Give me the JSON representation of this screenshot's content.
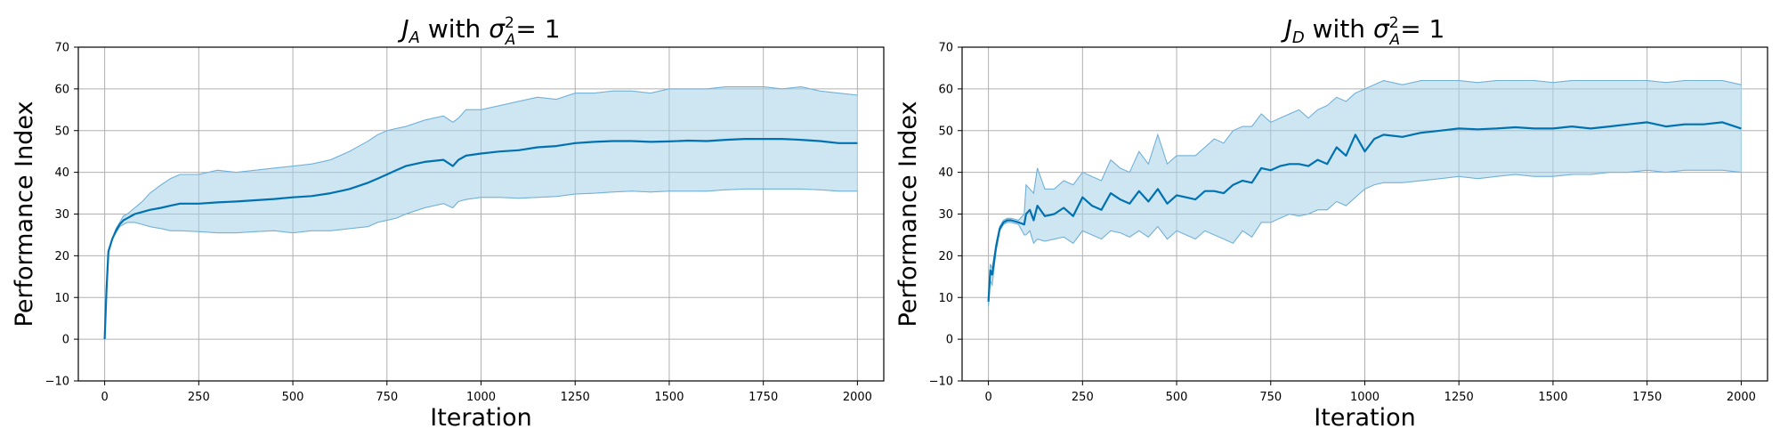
{
  "chart_data": [
    {
      "type": "line",
      "title": {
        "prefix": "J",
        "prefix_sub": "A",
        "text": " with ",
        "sym": "σ",
        "sym_sup": "2",
        "sym_sub": "A",
        "suffix": "=  1"
      },
      "xlabel": "Iteration",
      "ylabel": "Performance Index",
      "xlim": [
        -70,
        2070
      ],
      "ylim": [
        -10,
        70
      ],
      "xticks": [
        0,
        250,
        500,
        750,
        1000,
        1250,
        1500,
        1750,
        2000
      ],
      "yticks": [
        -10,
        0,
        10,
        20,
        30,
        40,
        50,
        60,
        70
      ],
      "ytick_labels": [
        "−10",
        "0",
        "10",
        "20",
        "30",
        "40",
        "50",
        "60",
        "70"
      ],
      "grid": true,
      "series": [
        {
          "color": "#0072b2",
          "band_color": "#a6cfe8",
          "x": [
            0,
            5,
            10,
            20,
            30,
            40,
            50,
            60,
            80,
            100,
            120,
            150,
            175,
            200,
            250,
            300,
            350,
            400,
            450,
            500,
            550,
            600,
            650,
            700,
            725,
            750,
            775,
            800,
            850,
            900,
            925,
            940,
            960,
            1000,
            1050,
            1100,
            1150,
            1200,
            1250,
            1300,
            1350,
            1400,
            1450,
            1500,
            1550,
            1600,
            1650,
            1700,
            1750,
            1800,
            1850,
            1900,
            1950,
            2000
          ],
          "mean": [
            0,
            12,
            21,
            24,
            26,
            27.5,
            28.5,
            29,
            30,
            30.5,
            31,
            31.5,
            32,
            32.5,
            32.5,
            32.8,
            33,
            33.3,
            33.6,
            34,
            34.3,
            35,
            36,
            37.5,
            38.5,
            39.5,
            40.5,
            41.5,
            42.5,
            43,
            41.5,
            43,
            44,
            44.5,
            45,
            45.3,
            46,
            46.3,
            47,
            47.3,
            47.5,
            47.5,
            47.3,
            47.4,
            47.6,
            47.5,
            47.8,
            48,
            48,
            48,
            47.8,
            47.5,
            47,
            47
          ],
          "upper": [
            0,
            12,
            21,
            24,
            26.5,
            28,
            29.5,
            30,
            31.5,
            33,
            35,
            37,
            38.5,
            39.5,
            39.5,
            40.5,
            40,
            40.5,
            41,
            41.5,
            42,
            43,
            45,
            47.5,
            49,
            50,
            50.5,
            51,
            52.5,
            53.5,
            52,
            53,
            55,
            55,
            56,
            57,
            58,
            57.5,
            59,
            59,
            59.5,
            59.5,
            59,
            60,
            60,
            60,
            60.5,
            60.5,
            60.5,
            60,
            60.5,
            59.5,
            59,
            58.5
          ],
          "lower": [
            0,
            12,
            21,
            24,
            25.5,
            27,
            27.5,
            28,
            28,
            27.5,
            27,
            26.5,
            26,
            26,
            25.8,
            25.5,
            25.5,
            25.8,
            26,
            25.5,
            26,
            26,
            26.5,
            27,
            28,
            28.5,
            29,
            30,
            31.5,
            32.5,
            31.5,
            33,
            33.5,
            34,
            34,
            33.8,
            34,
            34.2,
            34.8,
            35,
            35.3,
            35.5,
            35.3,
            35.5,
            35.5,
            35.5,
            35.8,
            36,
            36,
            36,
            36,
            35.8,
            35.5,
            35.5
          ]
        }
      ]
    },
    {
      "type": "line",
      "title": {
        "prefix": "J",
        "prefix_sub": "D",
        "text": " with ",
        "sym": "σ",
        "sym_sup": "2",
        "sym_sub": "A",
        "suffix": "=  1"
      },
      "xlabel": "Iteration",
      "ylabel": "Performance Index",
      "xlim": [
        -70,
        2070
      ],
      "ylim": [
        -10,
        70
      ],
      "xticks": [
        0,
        250,
        500,
        750,
        1000,
        1250,
        1500,
        1750,
        2000
      ],
      "yticks": [
        -10,
        0,
        10,
        20,
        30,
        40,
        50,
        60,
        70
      ],
      "ytick_labels": [
        "−10",
        "0",
        "10",
        "20",
        "30",
        "40",
        "50",
        "60",
        "70"
      ],
      "grid": true,
      "series": [
        {
          "color": "#0072b2",
          "band_color": "#a6cfe8",
          "x": [
            0,
            5,
            10,
            20,
            30,
            40,
            50,
            60,
            80,
            95,
            100,
            110,
            120,
            130,
            150,
            175,
            200,
            225,
            250,
            275,
            300,
            325,
            350,
            375,
            400,
            425,
            450,
            475,
            500,
            525,
            550,
            575,
            600,
            625,
            650,
            675,
            700,
            725,
            750,
            775,
            800,
            825,
            850,
            875,
            900,
            925,
            950,
            975,
            1000,
            1025,
            1050,
            1100,
            1150,
            1200,
            1250,
            1300,
            1350,
            1400,
            1450,
            1500,
            1550,
            1600,
            1650,
            1700,
            1750,
            1800,
            1850,
            1900,
            1950,
            2000
          ],
          "mean": [
            9,
            16.5,
            15.5,
            22,
            26.5,
            28,
            28.5,
            28.5,
            28,
            27.5,
            30,
            31,
            28.5,
            32,
            29.5,
            30,
            31.5,
            29.5,
            34,
            32,
            31,
            35,
            33.5,
            32.5,
            35.5,
            33,
            36,
            32.5,
            34.5,
            34,
            33.5,
            35.5,
            35.5,
            35,
            37,
            38,
            37.5,
            41,
            40.5,
            41.5,
            42,
            42,
            41.5,
            43,
            42,
            46,
            44,
            49,
            45,
            48,
            49,
            48.5,
            49.5,
            50,
            50.5,
            50.3,
            50.5,
            50.8,
            50.5,
            50.5,
            51,
            50.5,
            51,
            51.5,
            52,
            51,
            51.5,
            51.5,
            52,
            50.5
          ],
          "upper": [
            10,
            18,
            17,
            23,
            27,
            28.5,
            29,
            29,
            28.5,
            30,
            37,
            36,
            35,
            41,
            36,
            36,
            38,
            37,
            40,
            39,
            38,
            43,
            41,
            40,
            45,
            42,
            49,
            42,
            44,
            44,
            44,
            46,
            48,
            47,
            50,
            51,
            51,
            54,
            52,
            53,
            54,
            55,
            53,
            55,
            56,
            58,
            57,
            59,
            60,
            61,
            62,
            61,
            62,
            62,
            62,
            61.5,
            62,
            62,
            62,
            61.5,
            62,
            62,
            62,
            62,
            62,
            61.5,
            62,
            62,
            62,
            61
          ],
          "lower": [
            8,
            14,
            13,
            21,
            26,
            27.5,
            28,
            28,
            27.5,
            25,
            25,
            26,
            23,
            24,
            23.5,
            24,
            24.5,
            23,
            26,
            25,
            24,
            26,
            25.5,
            24.5,
            26,
            24.5,
            27,
            24,
            26,
            25,
            24,
            26,
            25,
            24,
            23,
            26,
            24.5,
            28,
            28,
            29,
            30,
            29.5,
            30,
            31,
            31,
            33,
            32,
            34,
            36,
            37,
            37.5,
            37.5,
            38,
            38.5,
            39,
            38.5,
            39,
            39.5,
            39,
            39,
            39.5,
            39.5,
            40,
            40,
            40.5,
            40,
            40.5,
            40.5,
            40.5,
            40
          ]
        }
      ]
    }
  ]
}
